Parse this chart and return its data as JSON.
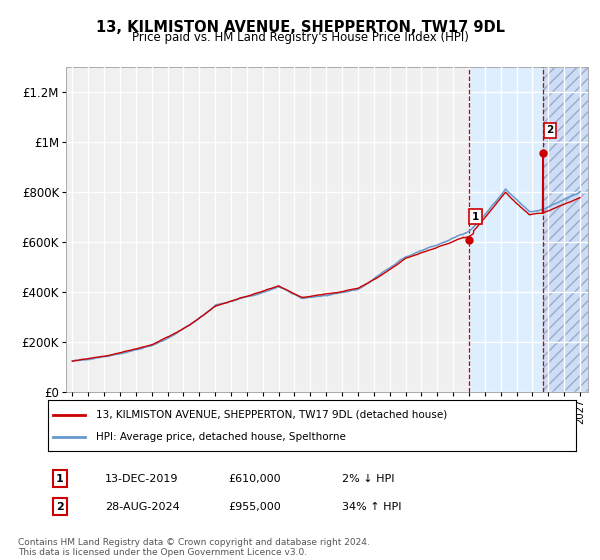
{
  "title": "13, KILMISTON AVENUE, SHEPPERTON, TW17 9DL",
  "subtitle": "Price paid vs. HM Land Registry's House Price Index (HPI)",
  "legend_line1": "13, KILMISTON AVENUE, SHEPPERTON, TW17 9DL (detached house)",
  "legend_line2": "HPI: Average price, detached house, Spelthorne",
  "annotation1_date": "13-DEC-2019",
  "annotation1_price": "£610,000",
  "annotation1_hpi": "2% ↓ HPI",
  "annotation2_date": "28-AUG-2024",
  "annotation2_price": "£955,000",
  "annotation2_hpi": "34% ↑ HPI",
  "footnote": "Contains HM Land Registry data © Crown copyright and database right 2024.\nThis data is licensed under the Open Government Licence v3.0.",
  "year_start": 1995,
  "year_end": 2027,
  "ylim_max": 1300000,
  "sale1_year": 2019.97,
  "sale1_price": 610000,
  "sale2_year": 2024.66,
  "sale2_price": 955000,
  "line_color_price": "#cc0000",
  "line_color_hpi": "#6699cc",
  "bg_plot": "#f0f0f0",
  "bg_shade1": "#ddeeff",
  "bg_shade2": "#ccddf5",
  "grid_color": "#ffffff",
  "yticks": [
    0,
    200000,
    400000,
    600000,
    800000,
    1000000,
    1200000
  ],
  "ylabels": [
    "£0",
    "£200K",
    "£400K",
    "£600K",
    "£800K",
    "£1M",
    "£1.2M"
  ]
}
